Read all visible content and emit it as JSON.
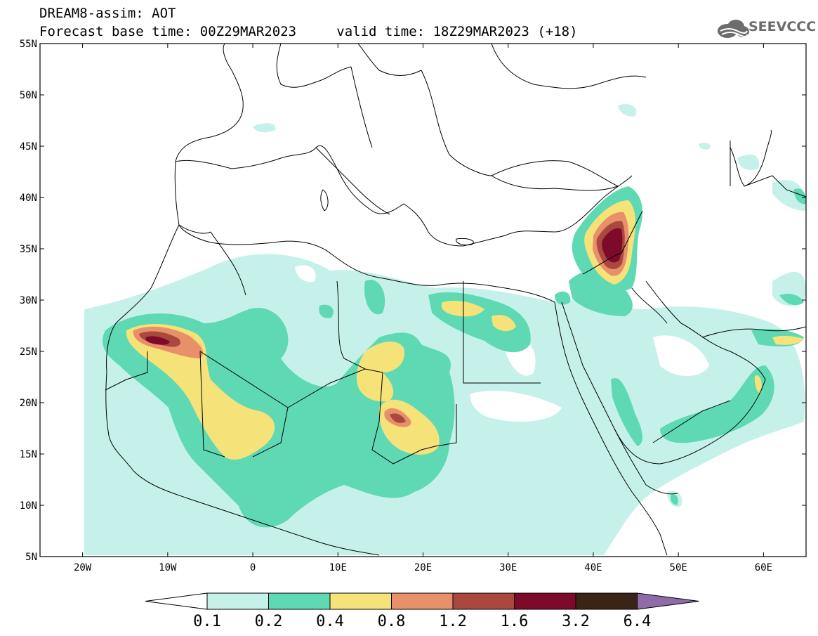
{
  "header": {
    "title": "DREAM8-assim: AOT",
    "base_time_label": "Forecast base time:",
    "base_time": "00Z29MAR2023",
    "valid_time_label": "valid time:",
    "valid_time": "18Z29MAR2023",
    "lead": "(+18)"
  },
  "logo": {
    "text": "SEEVCCC",
    "icon": "cloud-icon"
  },
  "map": {
    "lon_range": [
      -25,
      65
    ],
    "lat_range": [
      5,
      55
    ],
    "lat_ticks": [
      "55N",
      "50N",
      "45N",
      "40N",
      "35N",
      "30N",
      "25N",
      "20N",
      "15N",
      "10N",
      "5N"
    ],
    "lon_ticks": [
      "20W",
      "10W",
      "0",
      "10E",
      "20E",
      "30E",
      "40E",
      "50E",
      "60E"
    ]
  },
  "colorbar": {
    "labels": [
      "0.1",
      "0.2",
      "0.4",
      "0.8",
      "1.2",
      "1.6",
      "3.2",
      "6.4"
    ],
    "colors": [
      "#c6f1ea",
      "#5ed9b4",
      "#f5e37a",
      "#e8906a",
      "#a9483f",
      "#7e0a2a",
      "#3a2416",
      "#8f6ca8"
    ],
    "under_color": "#ffffff"
  }
}
